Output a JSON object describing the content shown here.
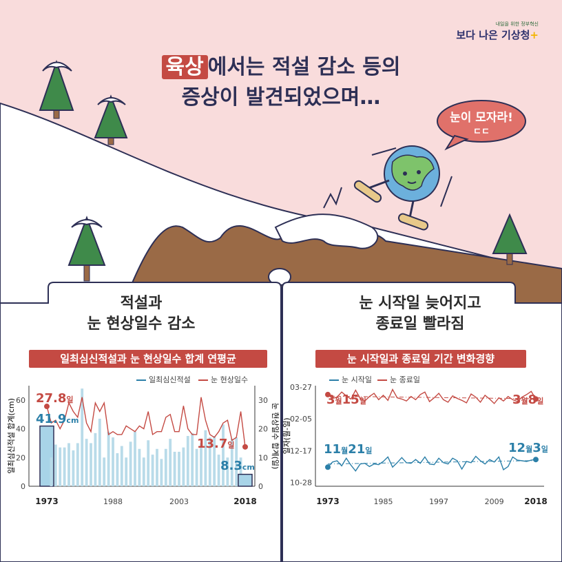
{
  "logo": {
    "tagline": "내일을 위한 정부혁신",
    "brand": "보다 나은 기상청"
  },
  "headline": {
    "highlight": "육상",
    "line1_rest": "에서는 적설 감소 등의",
    "line2": "증상이 발견되었으며…"
  },
  "speech": {
    "text": "눈이 모자라!",
    "sub": "ㄷㄷ"
  },
  "colors": {
    "bg_pink": "#f9dcdc",
    "red": "#c44a43",
    "blue": "#2b7fa8",
    "light_blue": "#b9dbe9",
    "ground": "#9a6a46",
    "navy": "#2d2f55"
  },
  "left_panel": {
    "title_line1": "적설과",
    "title_line2": "눈 현상일수 감소",
    "banner": "일최심신적설과 눈 현상일수 합계 연평균",
    "legend": [
      "일최심신적설",
      "눈 현상일수"
    ],
    "ylabel_left": "일최심신적설 합계(cm)",
    "ylabel_right": "눈 현상일수 합계(일)",
    "callouts": {
      "start_snow": "41.9",
      "start_snow_unit": "cm",
      "end_snow": "8.3",
      "end_snow_unit": "cm",
      "start_days": "27.8",
      "start_days_unit": "일",
      "end_days": "13.7",
      "end_days_unit": "일"
    }
  },
  "right_panel": {
    "title_line1": "눈 시작일 늦어지고",
    "title_line2": "종료일 빨라짐",
    "banner": "눈 시작일과 종료일 기간 변화경향",
    "legend": [
      "눈 시작일",
      "눈 종료일"
    ],
    "ylabel": "일자(월-일)",
    "callouts": {
      "end_first_m": "3",
      "end_first_d": "15",
      "end_last_m": "3",
      "end_last_d": "8",
      "start_first_m": "11",
      "start_first_d": "21",
      "start_last_m": "12",
      "start_last_d": "3"
    }
  },
  "chart_data": [
    {
      "type": "bar",
      "title": "일최심신적설과 눈 현상일수 합계 연평균",
      "x_ticks": [
        "1973",
        "1988",
        "2003",
        "2018"
      ],
      "ylabel": "일최심신적설 합계(cm)",
      "y2label": "눈 현상일수 합계(일)",
      "ylim": [
        0,
        70
      ],
      "y2lim": [
        0,
        35
      ],
      "y_ticks": [
        "0",
        "20",
        "40",
        "60"
      ],
      "y2_ticks": [
        "0",
        "10",
        "20",
        "30"
      ],
      "x": [
        1973,
        1974,
        1975,
        1976,
        1977,
        1978,
        1979,
        1980,
        1981,
        1982,
        1983,
        1984,
        1985,
        1986,
        1987,
        1988,
        1989,
        1990,
        1991,
        1992,
        1993,
        1994,
        1995,
        1996,
        1997,
        1998,
        1999,
        2000,
        2001,
        2002,
        2003,
        2004,
        2005,
        2006,
        2007,
        2008,
        2009,
        2010,
        2011,
        2012,
        2013,
        2014,
        2015,
        2016,
        2017,
        2018
      ],
      "series": [
        {
          "name": "일최심신적설",
          "axis": "left",
          "values": [
            41.9,
            20,
            29,
            27,
            27,
            30,
            25,
            30,
            68,
            33,
            30,
            37,
            47,
            20,
            38,
            34,
            23,
            28,
            20,
            31,
            38,
            26,
            20,
            32,
            22,
            26,
            19,
            26,
            33,
            24,
            24,
            27,
            35,
            37,
            26,
            30,
            39,
            34,
            35,
            22,
            43,
            20,
            33,
            34,
            20,
            8.3
          ]
        },
        {
          "name": "눈 현상일수",
          "axis": "right",
          "values": [
            27.8,
            22,
            23,
            20,
            23,
            29,
            26,
            24,
            31,
            22,
            19,
            29,
            26,
            29,
            18,
            19,
            18,
            18,
            21,
            20,
            19,
            21,
            20,
            26,
            18,
            19,
            19,
            24,
            25,
            19,
            19,
            28,
            20,
            18,
            18,
            31,
            23,
            18,
            17,
            19,
            22,
            23,
            16,
            17,
            26,
            13.7
          ]
        }
      ]
    },
    {
      "type": "line",
      "title": "눈 시작일과 종료일 기간 변화경향",
      "x_ticks": [
        "1973",
        "1985",
        "1997",
        "2009",
        "2018"
      ],
      "ylabel": "일자(월-일)",
      "y_ticks": [
        "10-28",
        "12-17",
        "02-05",
        "03-27"
      ],
      "ylim": [
        -6,
        152
      ],
      "y_unit": "days since 10-28",
      "x": [
        1973,
        1974,
        1975,
        1976,
        1977,
        1978,
        1979,
        1980,
        1981,
        1982,
        1983,
        1984,
        1985,
        1986,
        1987,
        1988,
        1989,
        1990,
        1991,
        1992,
        1993,
        1994,
        1995,
        1996,
        1997,
        1998,
        1999,
        2000,
        2001,
        2002,
        2003,
        2004,
        2005,
        2006,
        2007,
        2008,
        2009,
        2010,
        2011,
        2012,
        2013,
        2014,
        2015,
        2016,
        2017,
        2018
      ],
      "series": [
        {
          "name": "눈 시작일",
          "values": [
            24,
            32,
            34,
            26,
            38,
            27,
            18,
            29,
            30,
            25,
            29,
            28,
            33,
            40,
            24,
            31,
            39,
            31,
            30,
            36,
            30,
            40,
            29,
            28,
            38,
            31,
            29,
            38,
            34,
            21,
            33,
            31,
            41,
            34,
            29,
            36,
            32,
            40,
            20,
            25,
            40,
            35,
            34,
            33,
            35,
            36
          ]
        },
        {
          "name": "눈 종료일",
          "values": [
            138,
            132,
            134,
            142,
            136,
            131,
            145,
            132,
            128,
            135,
            140,
            130,
            137,
            129,
            146,
            133,
            131,
            128,
            135,
            130,
            138,
            142,
            127,
            133,
            140,
            130,
            126,
            136,
            132,
            129,
            125,
            139,
            134,
            126,
            137,
            131,
            124,
            133,
            128,
            135,
            130,
            127,
            134,
            138,
            143,
            131
          ]
        }
      ]
    }
  ]
}
